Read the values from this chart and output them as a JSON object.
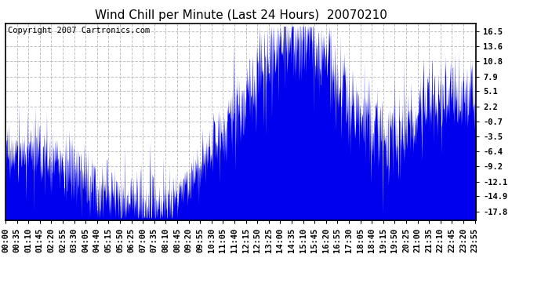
{
  "title": "Wind Chill per Minute (Last 24 Hours)  20070210",
  "copyright": "Copyright 2007 Cartronics.com",
  "yticks": [
    16.5,
    13.6,
    10.8,
    7.9,
    5.1,
    2.2,
    -0.7,
    -3.5,
    -6.4,
    -9.2,
    -12.1,
    -14.9,
    -17.8
  ],
  "ymin": -19.5,
  "ymax": 18.0,
  "xlim_minutes": [
    0,
    1439
  ],
  "line_color": "#0000EE",
  "background_color": "#FFFFFF",
  "grid_color": "#BBBBBB",
  "title_fontsize": 11,
  "copyright_fontsize": 7.5,
  "tick_fontsize": 7.5,
  "x_tick_labels": [
    "00:00",
    "00:35",
    "01:10",
    "01:45",
    "02:20",
    "02:55",
    "03:30",
    "04:05",
    "04:40",
    "05:15",
    "05:50",
    "06:25",
    "07:00",
    "07:35",
    "08:10",
    "08:45",
    "09:20",
    "09:55",
    "10:30",
    "11:05",
    "11:40",
    "12:15",
    "12:50",
    "13:25",
    "14:00",
    "14:35",
    "15:10",
    "15:45",
    "16:20",
    "16:55",
    "17:30",
    "18:05",
    "18:40",
    "19:15",
    "19:50",
    "20:25",
    "21:00",
    "21:35",
    "22:10",
    "22:45",
    "23:20",
    "23:55"
  ],
  "seed": 17,
  "base_points": {
    "0": -7.0,
    "60": -6.5,
    "120": -7.5,
    "180": -9.0,
    "240": -11.5,
    "300": -13.5,
    "360": -15.5,
    "420": -17.0,
    "480": -17.5,
    "540": -14.0,
    "600": -9.0,
    "660": -3.0,
    "720": 3.0,
    "780": 9.0,
    "840": 14.0,
    "870": 16.0,
    "900": 15.5,
    "930": 14.5,
    "960": 13.0,
    "990": 10.0,
    "1020": 6.0,
    "1050": 3.0,
    "1080": 1.0,
    "1110": -1.0,
    "1140": -2.5,
    "1170": -3.5,
    "1200": -4.0,
    "1230": -2.0,
    "1260": 0.5,
    "1290": 2.5,
    "1320": 3.5,
    "1380": 4.0,
    "1440": 4.5
  },
  "noise_levels": {
    "0": 2.5,
    "120": 3.5,
    "480": 4.0,
    "540": 2.0,
    "840": 5.0,
    "960": 5.5,
    "1050": 4.5,
    "1200": 4.0,
    "1440": 4.0
  }
}
